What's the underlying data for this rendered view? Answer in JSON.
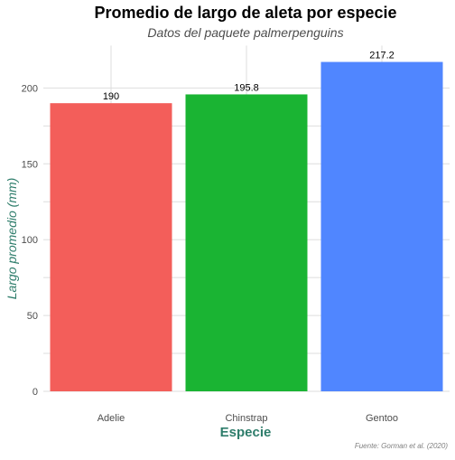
{
  "chart_data": {
    "type": "bar",
    "title": "Promedio de largo de aleta por especie",
    "subtitle": "Datos del paquete palmerpenguins",
    "xlabel": "Especie",
    "ylabel": "Largo promedio (mm)",
    "caption": "Fuente: Gorman et al. (2020)",
    "categories": [
      "Adelie",
      "Chinstrap",
      "Gentoo"
    ],
    "values": [
      190,
      195.8,
      217.2
    ],
    "value_labels": [
      "190",
      "195.8",
      "217.2"
    ],
    "colors": [
      "#F35E5A",
      "#1AB433",
      "#5086FF"
    ],
    "yticks": [
      0,
      50,
      100,
      150,
      200
    ],
    "ylim": [
      0,
      228
    ],
    "grid": true,
    "legend": "none",
    "axis_title_color": "#2E7D6B"
  }
}
